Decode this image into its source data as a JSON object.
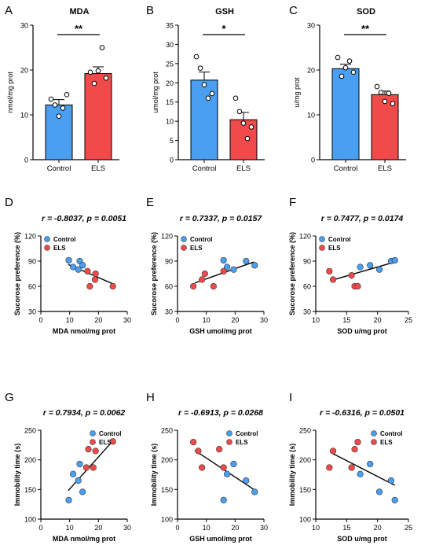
{
  "colors": {
    "control": "#4a9ff0",
    "els": "#f04a4a",
    "axis": "#000000",
    "fit": "#000000"
  },
  "chart_data": [
    {
      "id": "A",
      "type": "bar",
      "letter": "A",
      "title": "MDA",
      "ylabel": "nmol/mg prot",
      "xlabel": "",
      "categories": [
        "Control",
        "ELS"
      ],
      "values": [
        12.2,
        19.2
      ],
      "sem": [
        1.2,
        1.5
      ],
      "ylim": [
        0,
        30
      ],
      "yticks": [
        0,
        10,
        20,
        30
      ],
      "points": [
        [
          13.5,
          12.2,
          9.7,
          11.5,
          14.5
        ],
        [
          19.5,
          17.0,
          19.8,
          25.0,
          18.2
        ]
      ],
      "significance": "**"
    },
    {
      "id": "B",
      "type": "bar",
      "letter": "B",
      "title": "GSH",
      "ylabel": "umol/mg prot",
      "xlabel": "",
      "categories": [
        "Control",
        "ELS"
      ],
      "values": [
        20.7,
        10.4
      ],
      "sem": [
        2.1,
        1.9
      ],
      "ylim": [
        0,
        35
      ],
      "yticks": [
        0,
        5,
        10,
        15,
        20,
        25,
        30,
        35
      ],
      "points": [
        [
          26.8,
          23.8,
          19.5,
          16.0,
          17.2
        ],
        [
          16.0,
          12.5,
          9.5,
          5.5,
          8.5
        ]
      ],
      "significance": "*"
    },
    {
      "id": "C",
      "type": "bar",
      "letter": "C",
      "title": "SOD",
      "ylabel": "u/mg prot",
      "xlabel": "",
      "categories": [
        "Control",
        "ELS"
      ],
      "values": [
        20.3,
        14.5
      ],
      "sem": [
        1.0,
        0.8
      ],
      "ylim": [
        0,
        30
      ],
      "yticks": [
        0,
        10,
        20,
        30
      ],
      "points": [
        [
          22.8,
          18.6,
          20.5,
          22.0,
          19.5
        ],
        [
          16.3,
          15.0,
          13.0,
          14.8,
          12.5
        ]
      ],
      "significance": "**"
    },
    {
      "id": "D",
      "type": "scatter",
      "letter": "D",
      "title": "r = -0.8037, p = 0.0051",
      "xlabel": "MDA nmol/mg prot",
      "ylabel": "Sucorose preference (%)",
      "xlim": [
        0,
        30
      ],
      "ylim": [
        30,
        120
      ],
      "xticks": [
        0,
        10,
        20,
        30
      ],
      "yticks": [
        30,
        60,
        90,
        120
      ],
      "series": [
        {
          "name": "Control",
          "x": [
            9.7,
            11.2,
            13.5,
            14.5,
            13.0
          ],
          "y": [
            91,
            83,
            90,
            85,
            80
          ]
        },
        {
          "name": "ELS",
          "x": [
            16.2,
            17.0,
            19.0,
            18.8,
            25.0
          ],
          "y": [
            78,
            60,
            75,
            68,
            60
          ]
        }
      ],
      "fit": {
        "x": [
          9.5,
          25.0
        ],
        "y": [
          86,
          63
        ]
      }
    },
    {
      "id": "E",
      "type": "scatter",
      "letter": "E",
      "title": "r = 0.7337, p = 0.0157",
      "xlabel": "GSH umol/mg prot",
      "ylabel": "Sucorose preference (%)",
      "xlim": [
        0,
        30
      ],
      "ylim": [
        30,
        120
      ],
      "xticks": [
        0,
        10,
        20,
        30
      ],
      "yticks": [
        30,
        60,
        90,
        120
      ],
      "series": [
        {
          "name": "Control",
          "x": [
            16.0,
            17.2,
            19.5,
            23.8,
            26.8
          ],
          "y": [
            91,
            83,
            80,
            90,
            85
          ]
        },
        {
          "name": "ELS",
          "x": [
            5.5,
            8.5,
            9.5,
            12.5,
            16.0
          ],
          "y": [
            60,
            68,
            75,
            60,
            78
          ]
        }
      ],
      "fit": {
        "x": [
          6.0,
          26.5
        ],
        "y": [
          64,
          89
        ]
      }
    },
    {
      "id": "F",
      "type": "scatter",
      "letter": "F",
      "title": "r = 0.7477, p = 0.0174",
      "xlabel": "SOD u/mg prot",
      "ylabel": "Sucorose preference (%)",
      "xlim": [
        10,
        25
      ],
      "ylim": [
        30,
        120
      ],
      "xticks": [
        10,
        15,
        20,
        25
      ],
      "yticks": [
        30,
        60,
        90,
        120
      ],
      "series": [
        {
          "name": "Control",
          "x": [
            17.2,
            18.8,
            20.3,
            22.2,
            22.8
          ],
          "y": [
            83,
            85,
            80,
            90,
            91
          ]
        },
        {
          "name": "ELS",
          "x": [
            12.2,
            12.8,
            15.8,
            16.3,
            16.8
          ],
          "y": [
            78,
            68,
            73,
            60,
            60
          ]
        }
      ],
      "fit": {
        "x": [
          12.5,
          22.8
        ],
        "y": [
          67,
          89
        ]
      }
    },
    {
      "id": "G",
      "type": "scatter",
      "letter": "G",
      "title": "r = 0.7934, p = 0.0062",
      "xlabel": "MDA nmol/mg prot",
      "ylabel": "Immobility time (s)",
      "xlim": [
        0,
        30
      ],
      "ylim": [
        100,
        250
      ],
      "xticks": [
        0,
        10,
        20,
        30
      ],
      "yticks": [
        100,
        150,
        200,
        250
      ],
      "series": [
        {
          "name": "Control",
          "x": [
            9.7,
            11.2,
            13.0,
            13.5,
            14.5
          ],
          "y": [
            132,
            176,
            165,
            193,
            146
          ]
        },
        {
          "name": "ELS",
          "x": [
            15.8,
            16.5,
            18.2,
            19.0,
            25.0
          ],
          "y": [
            187,
            218,
            187,
            215,
            231
          ]
        }
      ],
      "fit": {
        "x": [
          9.5,
          25.0
        ],
        "y": [
          148,
          232
        ]
      }
    },
    {
      "id": "H",
      "type": "scatter",
      "letter": "H",
      "title": "r = -0.6913, p = 0.0268",
      "xlabel": "GSH umol/mg prot",
      "ylabel": "Immobility time (s)",
      "xlim": [
        0,
        30
      ],
      "ylim": [
        100,
        250
      ],
      "xticks": [
        0,
        10,
        20,
        30
      ],
      "yticks": [
        100,
        150,
        200,
        250
      ],
      "series": [
        {
          "name": "Control",
          "x": [
            16.0,
            17.2,
            19.5,
            23.8,
            26.8
          ],
          "y": [
            132,
            176,
            193,
            165,
            146
          ]
        },
        {
          "name": "ELS",
          "x": [
            5.5,
            7.2,
            8.5,
            14.5,
            16.0
          ],
          "y": [
            230,
            215,
            187,
            218,
            187
          ]
        }
      ],
      "fit": {
        "x": [
          6.0,
          26.5
        ],
        "y": [
          216,
          150
        ]
      }
    },
    {
      "id": "I",
      "type": "scatter",
      "letter": "I",
      "title": "r = -0.6316, p = 0.0501",
      "xlabel": "SOD u/mg prot",
      "ylabel": "Immobility time (s)",
      "xlim": [
        10,
        25
      ],
      "ylim": [
        100,
        250
      ],
      "xticks": [
        10,
        15,
        20,
        25
      ],
      "yticks": [
        100,
        150,
        200,
        250
      ],
      "series": [
        {
          "name": "Control",
          "x": [
            17.2,
            18.8,
            20.3,
            22.2,
            22.8
          ],
          "y": [
            176,
            193,
            146,
            165,
            132
          ]
        },
        {
          "name": "ELS",
          "x": [
            12.2,
            12.8,
            15.8,
            16.3,
            16.8
          ],
          "y": [
            187,
            215,
            187,
            218,
            230
          ]
        }
      ],
      "fit": {
        "x": [
          12.5,
          22.8
        ],
        "y": [
          212,
          157
        ]
      }
    }
  ]
}
